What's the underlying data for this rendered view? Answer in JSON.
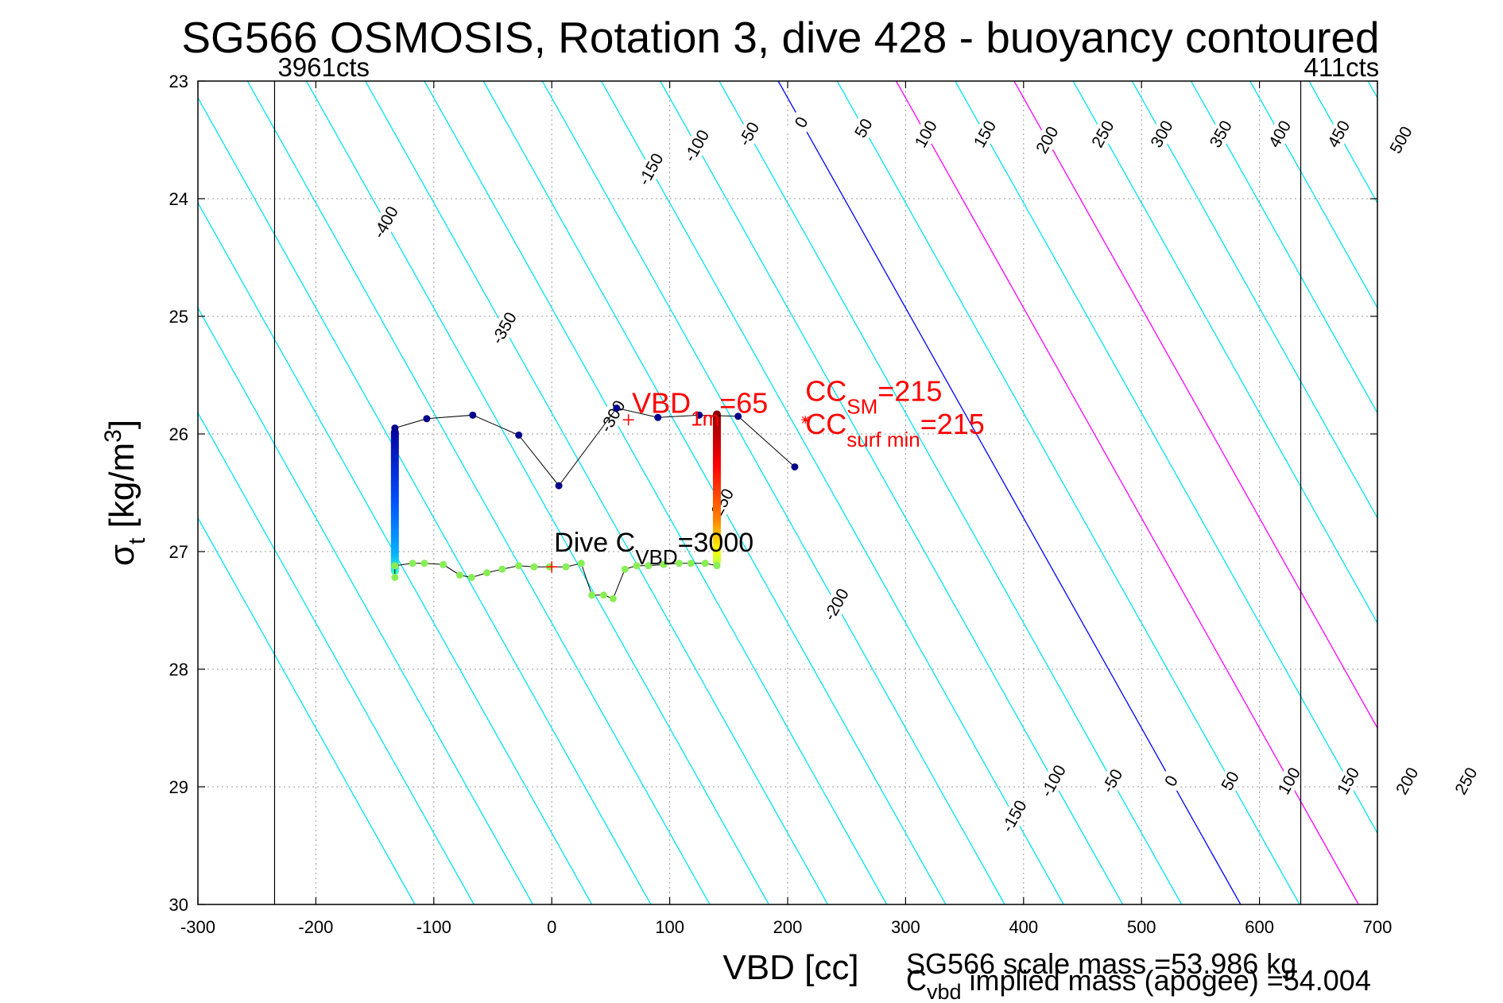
{
  "chart_data": {
    "type": "scatter",
    "title": "SG566 OSMOSIS, Rotation 3, dive 428 - buoyancy contoured",
    "xlabel": "VBD [cc]",
    "ylabel": {
      "base": "σ",
      "sub": "t",
      "main": " [kg/m",
      "sup": "3",
      "end": "]"
    },
    "xlim": [
      -300,
      700
    ],
    "ylim": [
      23,
      30
    ],
    "y_reversed": true,
    "grid": true,
    "x_ticks": [
      -300,
      -200,
      -100,
      0,
      100,
      200,
      300,
      400,
      500,
      600,
      700
    ],
    "y_ticks": [
      23,
      24,
      25,
      26,
      27,
      28,
      29,
      30
    ],
    "colors": {
      "contour": "#00e5ee",
      "zero_contour": "#0000ff",
      "magenta_contour": "#ff00ff",
      "annotation_red": "#ff0000",
      "text": "#000000",
      "grid": "#9a9a9a"
    },
    "count_lines": [
      {
        "x": -235,
        "label": "3961cts"
      },
      {
        "x": 635,
        "label": "411cts"
      }
    ],
    "contours": {
      "slope_cc_per_sigma": 56,
      "reference_sigma": 23,
      "zero_vbd_at_reference": 192,
      "spacing": 50,
      "levels": [
        -700,
        -650,
        -600,
        -550,
        -500,
        -450,
        -400,
        -350,
        -300,
        -250,
        -200,
        -150,
        -100,
        -50,
        0,
        50,
        100,
        150,
        200,
        250,
        300,
        350,
        400,
        450,
        500
      ],
      "highlight_blue": [
        0
      ],
      "highlight_magenta": [
        100,
        200
      ],
      "labels": [
        {
          "level": -400,
          "sigma": 24.2
        },
        {
          "level": -350,
          "sigma": 25.1
        },
        {
          "level": -300,
          "sigma": 25.85
        },
        {
          "level": -250,
          "sigma": 26.6
        },
        {
          "level": -200,
          "sigma": 27.45
        },
        {
          "level": -150,
          "sigma": 23.75
        },
        {
          "level": -100,
          "sigma": 23.55
        },
        {
          "level": -50,
          "sigma": 23.45
        },
        {
          "level": 0,
          "sigma": 23.35
        },
        {
          "level": 50,
          "sigma": 23.4
        },
        {
          "level": 100,
          "sigma": 23.45
        },
        {
          "level": 150,
          "sigma": 23.45
        },
        {
          "level": 200,
          "sigma": 23.5
        },
        {
          "level": 250,
          "sigma": 23.45
        },
        {
          "level": 300,
          "sigma": 23.45
        },
        {
          "level": 350,
          "sigma": 23.45
        },
        {
          "level": 400,
          "sigma": 23.45
        },
        {
          "level": 450,
          "sigma": 23.45
        },
        {
          "level": 500,
          "sigma": 23.5
        },
        {
          "level": -150,
          "sigma": 29.25
        },
        {
          "level": -100,
          "sigma": 28.95
        },
        {
          "level": -50,
          "sigma": 28.95
        },
        {
          "level": 0,
          "sigma": 28.95
        },
        {
          "level": 50,
          "sigma": 28.95
        },
        {
          "level": 100,
          "sigma": 28.95
        },
        {
          "level": 150,
          "sigma": 28.95
        },
        {
          "level": 200,
          "sigma": 28.95
        },
        {
          "level": 250,
          "sigma": 28.95
        },
        {
          "level": 300,
          "sigma": 28.95
        },
        {
          "level": 350,
          "sigma": 28.95
        },
        {
          "level": 400,
          "sigma": 28.95
        },
        {
          "level": 450,
          "sigma": 28.95
        },
        {
          "level": 500,
          "sigma": 28.95
        }
      ]
    },
    "series": [
      {
        "role": "climb-profile",
        "points": [
          [
            -133,
            25.95
          ],
          [
            -106,
            25.87
          ],
          [
            -67,
            25.84
          ],
          [
            -28,
            26.01
          ],
          [
            6,
            26.44
          ],
          [
            55,
            25.78
          ],
          [
            90,
            25.86
          ],
          [
            125,
            25.84
          ],
          [
            158,
            25.85
          ],
          [
            206,
            26.28
          ]
        ]
      },
      {
        "role": "dive-profile",
        "points": [
          [
            -133,
            27.22
          ],
          [
            -133,
            27.12
          ],
          [
            -118,
            27.1
          ],
          [
            -108,
            27.1
          ],
          [
            -92,
            27.11
          ],
          [
            -78,
            27.2
          ],
          [
            -68,
            27.22
          ],
          [
            -55,
            27.18
          ],
          [
            -42,
            27.15
          ],
          [
            -28,
            27.12
          ],
          [
            -15,
            27.13
          ],
          [
            -2,
            27.13
          ],
          [
            12,
            27.13
          ],
          [
            25,
            27.1
          ],
          [
            34,
            27.37
          ],
          [
            44,
            27.37
          ],
          [
            52,
            27.4
          ],
          [
            62,
            27.15
          ],
          [
            72,
            27.12
          ],
          [
            82,
            27.12
          ],
          [
            95,
            27.11
          ],
          [
            108,
            27.1
          ],
          [
            118,
            27.1
          ],
          [
            130,
            27.1
          ],
          [
            140,
            27.12
          ]
        ]
      },
      {
        "role": "vertical-blue-column",
        "x": -133,
        "sigma_range": [
          25.95,
          27.2
        ]
      },
      {
        "role": "vertical-colour-column",
        "x": 140,
        "sigma_range": [
          25.8,
          27.12
        ]
      }
    ],
    "annotations": {
      "vbd_1m": {
        "main": "VBD",
        "sub": "1m",
        "value": "=65",
        "x": 68,
        "sigma": 25.82
      },
      "cc_sm": {
        "main": "CC",
        "sub": "SM",
        "value": "=215",
        "x": 215,
        "sigma": 25.72
      },
      "cc_surf_min": {
        "main": "CC",
        "sub": "surf min",
        "value": "=215",
        "x": 215,
        "sigma": 26.0
      },
      "dive_c_vbd": {
        "main": "Dive C",
        "sub": "VBD",
        "value": "=3000",
        "x": 2,
        "sigma": 27.0
      },
      "vbd_1m_marker": {
        "x": 65,
        "sigma": 25.88
      },
      "cc_marker": {
        "x": 215,
        "sigma": 25.88
      },
      "dive_marker": {
        "x": 0,
        "sigma": 27.13
      }
    },
    "footnotes": {
      "scale_mass": "SG566 scale mass =53.986 kg",
      "implied_mass": {
        "main": "C",
        "sub": "vbd",
        "value": " implied mass (apogee) =54.004"
      }
    }
  }
}
